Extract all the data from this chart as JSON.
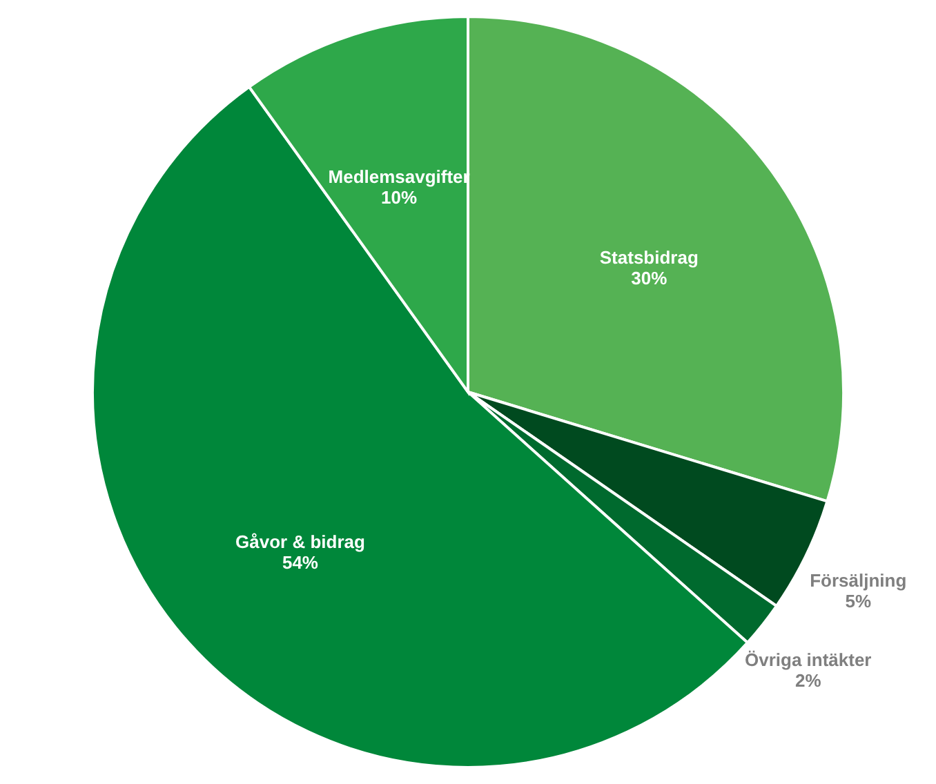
{
  "chart_data": {
    "type": "pie",
    "categories": [
      "Statsbidrag",
      "Försäljning",
      "Övriga intäkter",
      "Gåvor & bidrag",
      "Medlemsavgifter"
    ],
    "values": [
      30,
      5,
      2,
      54,
      10
    ],
    "value_labels": [
      "30%",
      "5%",
      "2%",
      "54%",
      "10%"
    ],
    "colors": [
      "#55b254",
      "#004a1f",
      "#006a2e",
      "#00873a",
      "#2ea84a"
    ]
  }
}
